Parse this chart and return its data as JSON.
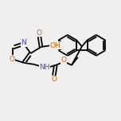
{
  "bg_color": "#f0eeee",
  "bond_color": "#000000",
  "N_color": "#4444cc",
  "O_color": "#cc6600",
  "bond_lw": 1.3,
  "font_size": 6.5,
  "fig_size": [
    1.52,
    1.52
  ],
  "dpi": 100,
  "xlim": [
    0,
    152
  ],
  "ylim": [
    0,
    152
  ]
}
